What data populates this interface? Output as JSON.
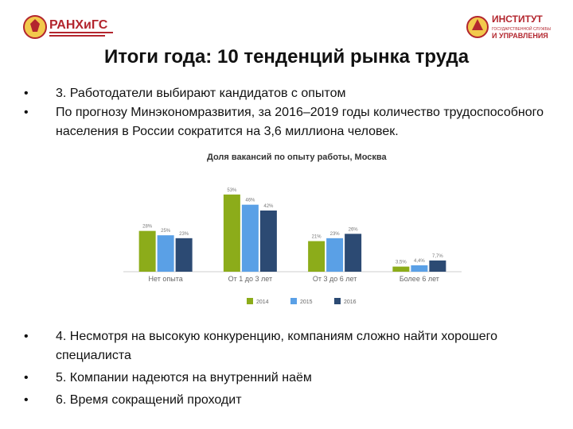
{
  "header": {
    "left_logo": {
      "name": "РАНХиГС",
      "icon": "ranepa-emblem-icon",
      "color": "#b3262e"
    },
    "right_logo": {
      "line1": "ИНСТИТУТ",
      "line2": "ГОСУДАРСТВЕННОЙ СЛУЖБЫ",
      "line3": "И УПРАВЛЕНИЯ",
      "icon": "igsu-emblem-icon",
      "color": "#b3262e"
    }
  },
  "slide": {
    "title": "Итоги года: 10 тенденций рынка труда",
    "bullets_top": [
      "3. Работодатели выбирают кандидатов с опытом",
      "По прогнозу Минэкономразвития, за 2016–2019 годы количество трудоспособного населения в России сократится на 3,6 миллиона человек."
    ],
    "bullets_bottom": [
      "4. Несмотря на высокую конкуренцию, компаниям сложно найти хорошего специалиста",
      "5. Компании надеются на внутренний наём",
      "6. Время сокращений проходит"
    ]
  },
  "chart_data": {
    "type": "bar",
    "title": "Доля вакансий по опыту работы, Москва",
    "categories": [
      "Нет опыта",
      "От 1 до 3 лет",
      "От 3 до 6 лет",
      "Более 6 лет"
    ],
    "series": [
      {
        "name": "2014",
        "values": [
          28,
          53,
          21,
          3.5
        ],
        "labels": [
          "28%",
          "53%",
          "21%",
          "3,5%"
        ],
        "color": "#8cac1a"
      },
      {
        "name": "2015",
        "values": [
          25,
          46,
          23,
          4.4
        ],
        "labels": [
          "25%",
          "46%",
          "23%",
          "4,4%"
        ],
        "color": "#5aa0e6"
      },
      {
        "name": "2016",
        "values": [
          23,
          42,
          26,
          7.7
        ],
        "labels": [
          "23%",
          "42%",
          "26%",
          "7,7%"
        ],
        "color": "#2c4a73"
      }
    ],
    "ylim": [
      0,
      60
    ],
    "grid": false,
    "legend": "bottom"
  }
}
